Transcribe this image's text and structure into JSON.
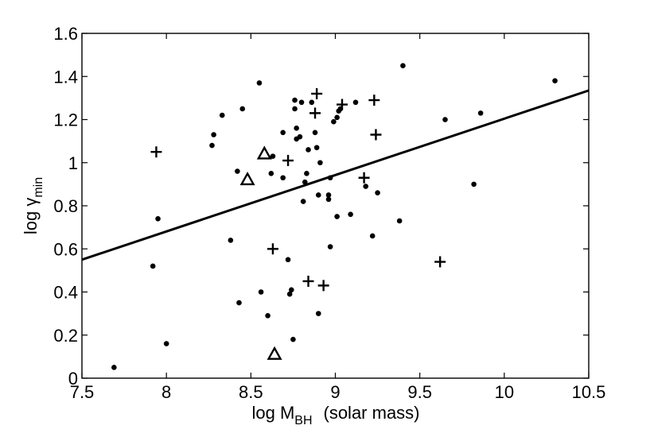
{
  "chart_data": {
    "type": "scatter",
    "title": "",
    "xlabel": {
      "main": "log M",
      "subscript": "BH",
      "suffix": "(solar mass)"
    },
    "ylabel": {
      "main": "log γ",
      "subscript": "min"
    },
    "xlim": [
      7.5,
      10.5
    ],
    "ylim": [
      0,
      1.6
    ],
    "xticks": [
      7.5,
      8,
      8.5,
      9,
      9.5,
      10,
      10.5
    ],
    "xtick_labels": [
      "7.5",
      "8",
      "8.5",
      "9",
      "9.5",
      "10",
      "10.5"
    ],
    "yticks": [
      0,
      0.2,
      0.4,
      0.6,
      0.8,
      1,
      1.2,
      1.4,
      1.6
    ],
    "ytick_labels": [
      "0",
      "0.2",
      "0.4",
      "0.6",
      "0.8",
      "1",
      "1.2",
      "1.4",
      "1.6"
    ],
    "grid": false,
    "legend": "none",
    "series": [
      {
        "marker": "dot",
        "color": "#000000",
        "points": [
          [
            7.69,
            0.05
          ],
          [
            7.92,
            0.52
          ],
          [
            7.95,
            0.74
          ],
          [
            8.0,
            0.16
          ],
          [
            8.27,
            1.08
          ],
          [
            8.28,
            1.13
          ],
          [
            8.33,
            1.22
          ],
          [
            8.38,
            0.64
          ],
          [
            8.42,
            0.96
          ],
          [
            8.43,
            0.35
          ],
          [
            8.45,
            1.25
          ],
          [
            8.55,
            1.37
          ],
          [
            8.56,
            0.4
          ],
          [
            8.6,
            0.29
          ],
          [
            8.62,
            0.95
          ],
          [
            8.63,
            1.03
          ],
          [
            8.69,
            0.93
          ],
          [
            8.69,
            1.14
          ],
          [
            8.72,
            0.55
          ],
          [
            8.73,
            0.39
          ],
          [
            8.74,
            0.41
          ],
          [
            8.75,
            0.18
          ],
          [
            8.76,
            1.29
          ],
          [
            8.76,
            1.25
          ],
          [
            8.77,
            1.11
          ],
          [
            8.77,
            1.16
          ],
          [
            8.79,
            1.12
          ],
          [
            8.8,
            1.28
          ],
          [
            8.81,
            0.82
          ],
          [
            8.82,
            0.91
          ],
          [
            8.83,
            0.95
          ],
          [
            8.84,
            1.06
          ],
          [
            8.86,
            1.28
          ],
          [
            8.88,
            1.14
          ],
          [
            8.89,
            1.07
          ],
          [
            8.9,
            0.3
          ],
          [
            8.9,
            0.85
          ],
          [
            8.91,
            1.0
          ],
          [
            8.96,
            0.83
          ],
          [
            8.96,
            0.85
          ],
          [
            8.97,
            0.61
          ],
          [
            8.97,
            0.93
          ],
          [
            8.99,
            1.19
          ],
          [
            9.01,
            1.21
          ],
          [
            9.01,
            0.75
          ],
          [
            9.02,
            1.24
          ],
          [
            9.03,
            1.25
          ],
          [
            9.09,
            0.76
          ],
          [
            9.12,
            1.28
          ],
          [
            9.18,
            0.89
          ],
          [
            9.22,
            0.66
          ],
          [
            9.25,
            0.86
          ],
          [
            9.38,
            0.73
          ],
          [
            9.4,
            1.45
          ],
          [
            9.65,
            1.2
          ],
          [
            9.82,
            0.9
          ],
          [
            9.86,
            1.23
          ],
          [
            10.3,
            1.38
          ]
        ]
      },
      {
        "marker": "plus",
        "color": "#000000",
        "points": [
          [
            7.94,
            1.05
          ],
          [
            8.63,
            0.6
          ],
          [
            8.72,
            1.01
          ],
          [
            8.84,
            0.45
          ],
          [
            8.88,
            1.23
          ],
          [
            8.89,
            1.32
          ],
          [
            8.93,
            0.43
          ],
          [
            9.04,
            1.27
          ],
          [
            9.17,
            0.93
          ],
          [
            9.23,
            1.29
          ],
          [
            9.24,
            1.13
          ],
          [
            9.62,
            0.54
          ]
        ]
      },
      {
        "marker": "triangle",
        "color": "#000000",
        "points": [
          [
            8.48,
            0.92
          ],
          [
            8.58,
            1.04
          ],
          [
            8.64,
            0.11
          ]
        ]
      }
    ],
    "fit_line": {
      "x": [
        7.5,
        10.5
      ],
      "y": [
        0.55,
        1.335
      ],
      "color": "#000000"
    }
  }
}
